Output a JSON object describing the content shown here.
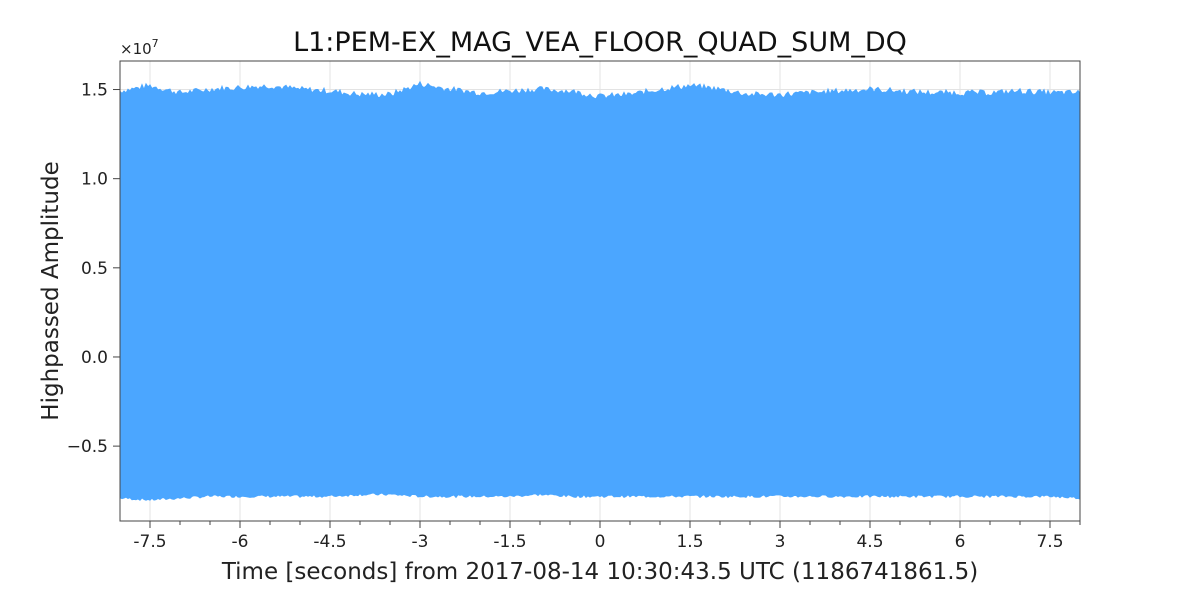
{
  "chart_data": {
    "type": "area",
    "title": "L1:PEM-EX_MAG_VEA_FLOOR_QUAD_SUM_DQ",
    "xlabel": "Time [seconds] from 2017-08-14 10:30:43.5 UTC (1186741861.5)",
    "ylabel": "Highpassed Amplitude",
    "y_multiplier_label": "×10",
    "y_multiplier_exponent": "7",
    "xlim": [
      -8.0,
      8.0
    ],
    "ylim": [
      -0.92,
      1.66
    ],
    "x_ticks": [
      -7.5,
      -6,
      -4.5,
      -3,
      -1.5,
      0,
      1.5,
      3,
      4.5,
      6,
      7.5
    ],
    "x_tick_labels": [
      "-7.5",
      "-6",
      "-4.5",
      "-3",
      "-1.5",
      "0",
      "1.5",
      "3",
      "4.5",
      "6",
      "7.5"
    ],
    "y_ticks": [
      -0.5,
      0.0,
      0.5,
      1.0,
      1.5
    ],
    "y_tick_labels": [
      "−0.5",
      "0.0",
      "0.5",
      "1.0",
      "1.5"
    ],
    "grid": true,
    "series": [
      {
        "color": "#4ba6ff",
        "x": [
          -8.0,
          -7.5,
          -7.0,
          -6.5,
          -6.0,
          -5.5,
          -5.0,
          -4.5,
          -4.0,
          -3.5,
          -3.0,
          -2.5,
          -2.0,
          -1.5,
          -1.0,
          -0.5,
          0.0,
          0.5,
          1.0,
          1.5,
          2.0,
          2.5,
          3.0,
          3.5,
          4.0,
          4.5,
          5.0,
          5.5,
          6.0,
          6.5,
          7.0,
          7.5,
          8.0
        ],
        "upper": [
          1.49,
          1.52,
          1.48,
          1.5,
          1.51,
          1.52,
          1.5,
          1.49,
          1.47,
          1.47,
          1.53,
          1.5,
          1.48,
          1.49,
          1.5,
          1.49,
          1.46,
          1.47,
          1.5,
          1.52,
          1.5,
          1.47,
          1.47,
          1.48,
          1.49,
          1.5,
          1.49,
          1.48,
          1.48,
          1.48,
          1.49,
          1.48,
          1.48
        ],
        "lower": [
          -0.79,
          -0.8,
          -0.79,
          -0.78,
          -0.78,
          -0.78,
          -0.78,
          -0.78,
          -0.77,
          -0.77,
          -0.78,
          -0.78,
          -0.78,
          -0.78,
          -0.77,
          -0.78,
          -0.78,
          -0.78,
          -0.78,
          -0.78,
          -0.78,
          -0.78,
          -0.78,
          -0.78,
          -0.78,
          -0.78,
          -0.78,
          -0.78,
          -0.78,
          -0.78,
          -0.78,
          -0.78,
          -0.79
        ]
      }
    ]
  }
}
